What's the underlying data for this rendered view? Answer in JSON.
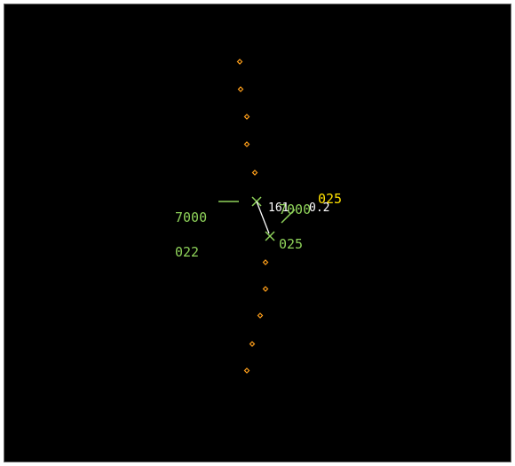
{
  "colors": {
    "background": "#000000",
    "track_green": "#8fd35a",
    "history_orange": "#ff9f1a",
    "caution_yellow": "#ffe100",
    "text_white": "#ffffff"
  },
  "targets": [
    {
      "id": "target-a",
      "altitude": "7000",
      "ground_speed": "022"
    },
    {
      "id": "target-b",
      "altitude": "7000",
      "ground_speed": "025"
    }
  ],
  "separation": {
    "bearing": "161",
    "range": "0.2",
    "closure_speed": "025"
  },
  "icons": {
    "target": "x-mark",
    "history": "diamond-dot"
  }
}
